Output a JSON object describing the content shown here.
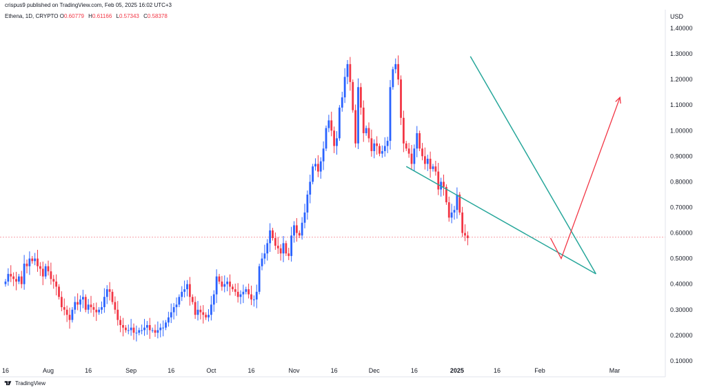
{
  "header": {
    "published": "crispus9 published on TradingView.com, Feb 05, 2025 16:02 UTC+3"
  },
  "symbol": {
    "name": "Ethena, 1D, CRYPTO",
    "open_label": "O",
    "open": "0.60779",
    "high_label": "H",
    "high": "0.61166",
    "low_label": "L",
    "low": "0.57343",
    "close_label": "C",
    "close": "0.58378"
  },
  "footer": {
    "brand": "TradingView"
  },
  "colors": {
    "up": "#2962ff",
    "down": "#f23645",
    "pattern": "#26a69a",
    "arrow": "#f23645",
    "price_line": "#f7a1a7"
  },
  "chart_data": {
    "type": "candlestick",
    "ylabel": "USD",
    "ylim": [
      0.05,
      1.45
    ],
    "y_ticks": [
      {
        "label": "1.40000",
        "value": 1.4
      },
      {
        "label": "1.30000",
        "value": 1.3
      },
      {
        "label": "1.20000",
        "value": 1.2
      },
      {
        "label": "1.10000",
        "value": 1.1
      },
      {
        "label": "1.00000",
        "value": 1.0
      },
      {
        "label": "0.90000",
        "value": 0.9
      },
      {
        "label": "0.80000",
        "value": 0.8
      },
      {
        "label": "0.70000",
        "value": 0.7
      },
      {
        "label": "0.60000",
        "value": 0.6
      },
      {
        "label": "0.50000",
        "value": 0.5
      },
      {
        "label": "0.40000",
        "value": 0.4
      },
      {
        "label": "0.30000",
        "value": 0.3
      },
      {
        "label": "0.20000",
        "value": 0.2
      },
      {
        "label": "0.10000",
        "value": 0.1
      }
    ],
    "x_ticks": [
      {
        "label": "16",
        "day": 0,
        "bold": false
      },
      {
        "label": "Aug",
        "day": 16,
        "bold": false
      },
      {
        "label": "16",
        "day": 31,
        "bold": false
      },
      {
        "label": "Sep",
        "day": 47,
        "bold": false
      },
      {
        "label": "16",
        "day": 62,
        "bold": false
      },
      {
        "label": "Oct",
        "day": 77,
        "bold": false
      },
      {
        "label": "16",
        "day": 92,
        "bold": false
      },
      {
        "label": "Nov",
        "day": 108,
        "bold": false
      },
      {
        "label": "16",
        "day": 123,
        "bold": false
      },
      {
        "label": "Dec",
        "day": 138,
        "bold": false
      },
      {
        "label": "16",
        "day": 153,
        "bold": false
      },
      {
        "label": "2025",
        "day": 169,
        "bold": true
      },
      {
        "label": "16",
        "day": 184,
        "bold": false
      },
      {
        "label": "Feb",
        "day": 200,
        "bold": false
      },
      {
        "label": "Mar",
        "day": 228,
        "bold": false
      }
    ],
    "close_price": 0.58378,
    "closes": [
      0.41,
      0.44,
      0.43,
      0.42,
      0.41,
      0.43,
      0.4,
      0.48,
      0.47,
      0.5,
      0.49,
      0.5,
      0.47,
      0.46,
      0.43,
      0.47,
      0.45,
      0.42,
      0.41,
      0.39,
      0.35,
      0.31,
      0.3,
      0.28,
      0.26,
      0.3,
      0.33,
      0.32,
      0.34,
      0.35,
      0.3,
      0.32,
      0.31,
      0.3,
      0.29,
      0.3,
      0.31,
      0.35,
      0.38,
      0.37,
      0.33,
      0.3,
      0.26,
      0.24,
      0.23,
      0.22,
      0.22,
      0.23,
      0.21,
      0.21,
      0.22,
      0.22,
      0.23,
      0.24,
      0.22,
      0.22,
      0.21,
      0.22,
      0.23,
      0.23,
      0.25,
      0.27,
      0.29,
      0.31,
      0.32,
      0.35,
      0.37,
      0.38,
      0.4,
      0.35,
      0.33,
      0.28,
      0.3,
      0.29,
      0.28,
      0.27,
      0.28,
      0.32,
      0.36,
      0.43,
      0.41,
      0.39,
      0.4,
      0.41,
      0.39,
      0.38,
      0.37,
      0.35,
      0.36,
      0.37,
      0.38,
      0.36,
      0.34,
      0.34,
      0.37,
      0.47,
      0.5,
      0.52,
      0.56,
      0.61,
      0.58,
      0.55,
      0.54,
      0.52,
      0.56,
      0.52,
      0.51,
      0.59,
      0.63,
      0.6,
      0.59,
      0.64,
      0.68,
      0.75,
      0.8,
      0.86,
      0.87,
      0.84,
      0.88,
      0.93,
      1.01,
      1.04,
      1.0,
      0.94,
      0.97,
      1.09,
      1.13,
      1.21,
      1.26,
      1.19,
      1.08,
      0.95,
      1.17,
      1.09,
      0.99,
      1.01,
      0.97,
      0.92,
      0.95,
      0.94,
      0.91,
      0.92,
      0.94,
      0.96,
      1.17,
      1.24,
      1.26,
      1.2,
      1.05,
      0.95,
      0.93,
      0.91,
      0.87,
      0.93,
      0.99,
      0.93,
      0.9,
      0.87,
      0.89,
      0.85,
      0.86,
      0.84,
      0.77,
      0.8,
      0.78,
      0.72,
      0.66,
      0.68,
      0.69,
      0.75,
      0.68,
      0.6,
      0.59,
      0.58
    ],
    "pattern": {
      "upper": [
        {
          "day": 174,
          "price": 1.29
        },
        {
          "day": 221,
          "price": 0.44
        }
      ],
      "lower": [
        {
          "day": 150,
          "price": 0.86
        },
        {
          "day": 221,
          "price": 0.44
        }
      ]
    },
    "arrow": [
      {
        "day": 204,
        "price": 0.58
      },
      {
        "day": 208,
        "price": 0.5
      },
      {
        "day": 230,
        "price": 1.13
      }
    ]
  }
}
